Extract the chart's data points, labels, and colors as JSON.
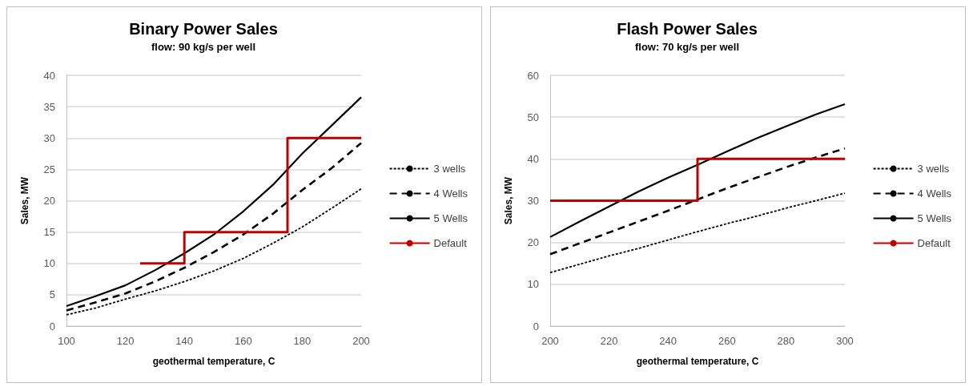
{
  "chart_data": [
    {
      "type": "line",
      "title": "Binary Power Sales",
      "subtitle": "flow: 90 kg/s per well",
      "xlabel": "geothermal temperature, C",
      "ylabel": "Sales, MW",
      "x": [
        100,
        110,
        120,
        130,
        140,
        150,
        160,
        170,
        180,
        190,
        200
      ],
      "xlim": [
        100,
        200
      ],
      "xticks": [
        100,
        120,
        140,
        160,
        180,
        200
      ],
      "ylim": [
        0,
        40
      ],
      "yticks": [
        0,
        5,
        10,
        15,
        20,
        25,
        30,
        35,
        40
      ],
      "grid": "y",
      "legend": "right",
      "marker": "none",
      "series": [
        {
          "name": "3 wells",
          "color": "#000000",
          "line_style": "dotted",
          "values": [
            1.8,
            2.9,
            4.3,
            5.6,
            7.1,
            8.8,
            10.8,
            13.2,
            15.8,
            18.8,
            21.9
          ]
        },
        {
          "name": "4 Wells",
          "color": "#000000",
          "line_style": "dashed",
          "values": [
            2.5,
            3.8,
            5.2,
            7.1,
            9.3,
            11.8,
            14.6,
            17.9,
            21.7,
            25.2,
            29.2
          ]
        },
        {
          "name": "5 Wells",
          "color": "#000000",
          "line_style": "solid",
          "values": [
            3.2,
            4.8,
            6.5,
            8.9,
            11.6,
            14.6,
            18.3,
            22.5,
            27.5,
            32,
            36.5
          ]
        },
        {
          "name": "Default",
          "color": "#c00000",
          "line_style": "solid",
          "x": [
            125,
            140,
            140,
            175,
            175,
            200
          ],
          "values": [
            10,
            10,
            15,
            15,
            30,
            30
          ]
        }
      ]
    },
    {
      "type": "line",
      "title": "Flash Power Sales",
      "subtitle": "flow: 70 kg/s per well",
      "xlabel": "geothermal temperature, C",
      "ylabel": "Sales, MW",
      "x": [
        200,
        210,
        220,
        230,
        240,
        250,
        260,
        270,
        280,
        290,
        300
      ],
      "xlim": [
        200,
        300
      ],
      "xticks": [
        200,
        220,
        240,
        260,
        280,
        300
      ],
      "ylim": [
        0,
        60
      ],
      "yticks": [
        0,
        10,
        20,
        30,
        40,
        50,
        60
      ],
      "grid": "y",
      "legend": "right",
      "marker": "none",
      "series": [
        {
          "name": "3 wells",
          "color": "#000000",
          "line_style": "dotted",
          "values": [
            12.8,
            14.8,
            16.8,
            18.6,
            20.6,
            22.6,
            24.5,
            26.3,
            28.2,
            30,
            31.8
          ]
        },
        {
          "name": "4 Wells",
          "color": "#000000",
          "line_style": "dashed",
          "values": [
            17.2,
            19.8,
            22.4,
            25,
            27.6,
            30.3,
            33,
            35.5,
            38,
            40.3,
            42.5
          ]
        },
        {
          "name": "5 Wells",
          "color": "#000000",
          "line_style": "solid",
          "values": [
            21.3,
            25,
            28.6,
            32.2,
            35.5,
            38.6,
            41.8,
            44.9,
            47.8,
            50.6,
            53.1
          ]
        },
        {
          "name": "Default",
          "color": "#c00000",
          "line_style": "solid",
          "x": [
            200,
            250,
            250,
            300
          ],
          "values": [
            30,
            30,
            40,
            40
          ]
        }
      ]
    }
  ]
}
